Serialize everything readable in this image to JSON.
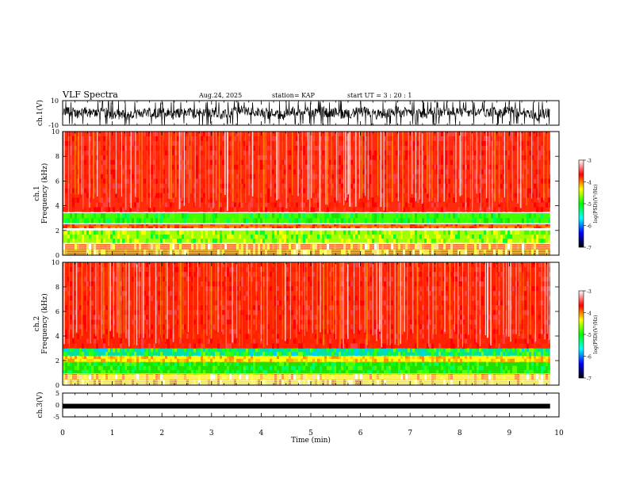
{
  "header": {
    "title": "VLF Spectra",
    "date": "Aug.24, 2025",
    "station": "station= KAP",
    "start": "start  UT =   3 : 20 : 1"
  },
  "chart_data": [
    {
      "type": "line",
      "name": "ch1-voltage",
      "ylabel": "ch.1(V)",
      "ylim": [
        -10,
        10
      ],
      "yticks": [
        "10",
        "-10"
      ],
      "xlim": [
        0,
        10
      ],
      "data_extent_min": 9.82
    },
    {
      "type": "heatmap",
      "name": "ch1-spectrogram",
      "ylabel": "ch.1 Frequency (kHz)",
      "ylim": [
        0,
        10
      ],
      "yticks": [
        "0",
        "2",
        "4",
        "6",
        "8",
        "10"
      ],
      "xlim": [
        0,
        10
      ],
      "data_extent_min": 9.82,
      "bands_khz": [
        {
          "from": 0.0,
          "to": 0.9,
          "level": "mixed orange-yellow-white"
        },
        {
          "from": 1.0,
          "to": 2.0,
          "level": "green-yellow"
        },
        {
          "from": 2.2,
          "to": 2.5,
          "level": "orange-red"
        },
        {
          "from": 2.6,
          "to": 3.4,
          "level": "green"
        },
        {
          "from": 3.5,
          "to": 10.0,
          "level": "red with white vertical streaks"
        }
      ],
      "colorbar": {
        "label": "log(PSD)(V²/Hz)",
        "ticks": [
          "-3",
          "-4",
          "-5",
          "-6",
          "-7"
        ],
        "range": [
          -7,
          -3
        ],
        "colors": [
          "#000000",
          "#0000ff",
          "#00ffff",
          "#00ff00",
          "#ffff00",
          "#ff0000",
          "#ffffff"
        ]
      }
    },
    {
      "type": "heatmap",
      "name": "ch2-spectrogram",
      "ylabel": "ch.2 Frequency (kHz)",
      "ylim": [
        0,
        10
      ],
      "yticks": [
        "0",
        "2",
        "4",
        "6",
        "8",
        "10"
      ],
      "xlim": [
        0,
        10
      ],
      "data_extent_min": 9.82,
      "bands_khz": [
        {
          "from": 0.0,
          "to": 0.9,
          "level": "mixed yellow-green-white"
        },
        {
          "from": 0.9,
          "to": 1.9,
          "level": "green"
        },
        {
          "from": 1.9,
          "to": 2.4,
          "level": "yellow-orange"
        },
        {
          "from": 2.4,
          "to": 3.0,
          "level": "green-cyan"
        },
        {
          "from": 3.0,
          "to": 10.0,
          "level": "red with white vertical streaks"
        }
      ],
      "colorbar": {
        "label": "log(PSD)(V²/Hz)",
        "ticks": [
          "-3",
          "-4",
          "-5",
          "-6",
          "-7"
        ],
        "range": [
          -7,
          -3
        ],
        "colors": [
          "#000000",
          "#0000ff",
          "#00ffff",
          "#00ff00",
          "#ffff00",
          "#ff0000",
          "#ffffff"
        ]
      }
    },
    {
      "type": "line",
      "name": "ch3-voltage",
      "ylabel": "ch.3(V)",
      "ylim": [
        -5,
        5
      ],
      "yticks": [
        "5",
        "0",
        "-5"
      ],
      "xlim": [
        0,
        10
      ],
      "xticks": [
        "0",
        "1",
        "2",
        "3",
        "4",
        "5",
        "6",
        "7",
        "8",
        "9",
        "10"
      ],
      "xlabel": "Time  (min)",
      "level_v": -0.5,
      "data_extent_min": 9.82
    }
  ]
}
